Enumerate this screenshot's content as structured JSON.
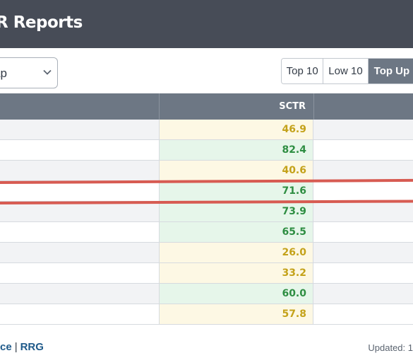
{
  "header": {
    "title": "R Reports"
  },
  "toolbar": {
    "select_value": "ap",
    "buttons": [
      "Top 10",
      "Low 10",
      "Top Up"
    ],
    "active_button": "Top Up"
  },
  "table": {
    "column_header": "SCTR",
    "rows": [
      {
        "sctr": "46.9",
        "tone": "mid"
      },
      {
        "sctr": "82.4",
        "tone": "high"
      },
      {
        "sctr": "40.6",
        "tone": "mid"
      },
      {
        "sctr": "71.6",
        "tone": "high",
        "highlighted": true
      },
      {
        "sctr": "73.9",
        "tone": "high"
      },
      {
        "sctr": "65.5",
        "tone": "high"
      },
      {
        "sctr": "26.0",
        "tone": "mid"
      },
      {
        "sctr": "33.2",
        "tone": "mid"
      },
      {
        "sctr": "60.0",
        "tone": "high"
      },
      {
        "sctr": "57.8",
        "tone": "mid"
      }
    ]
  },
  "footer": {
    "link_1": "ce",
    "link_2": "RRG",
    "separator": "|",
    "updated": "Updated: 1"
  },
  "colors": {
    "header_bg": "#474c57",
    "table_header_bg": "#6d7784",
    "mid_text": "#c4a21a",
    "high_text": "#2e8e42",
    "highlight_line": "#d75b52"
  }
}
